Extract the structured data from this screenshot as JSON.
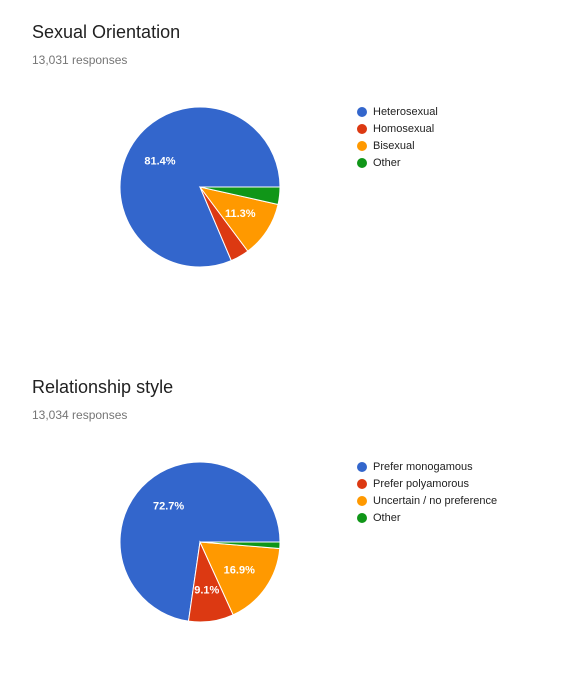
{
  "chart_data": [
    {
      "type": "pie",
      "title": "Sexual Orientation",
      "subtitle": "13,031 responses",
      "categories": [
        "Heterosexual",
        "Homosexual",
        "Bisexual",
        "Other"
      ],
      "values": [
        81.4,
        3.8,
        11.3,
        3.5
      ],
      "labels": [
        "81.4%",
        "",
        "11.3%",
        ""
      ],
      "colors": [
        "#3366cc",
        "#dc3912",
        "#ff9900",
        "#109618"
      ],
      "legend": "right"
    },
    {
      "type": "pie",
      "title": "Relationship style",
      "subtitle": "13,034 responses",
      "categories": [
        "Prefer monogamous",
        "Prefer polyamorous",
        "Uncertain / no preference",
        "Other"
      ],
      "values": [
        72.7,
        9.1,
        16.9,
        1.3
      ],
      "labels": [
        "72.7%",
        "9.1%",
        "16.9%",
        ""
      ],
      "colors": [
        "#3366cc",
        "#dc3912",
        "#ff9900",
        "#109618"
      ],
      "legend": "right"
    }
  ]
}
